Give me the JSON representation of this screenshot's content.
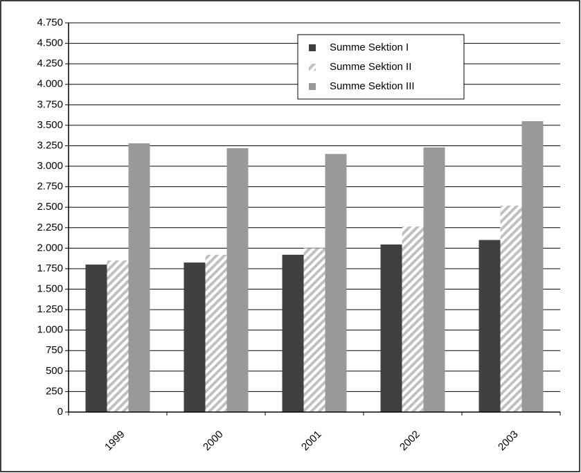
{
  "chart_data": {
    "type": "bar",
    "categories": [
      "1999",
      "2000",
      "2001",
      "2002",
      "2003"
    ],
    "series": [
      {
        "name": "Summe Sektion I",
        "color": "#404040",
        "values": [
          1800,
          1825,
          1920,
          2045,
          2100
        ]
      },
      {
        "name": "Summe Sektion II",
        "color": "#c0c0c0",
        "pattern": "hatch",
        "values": [
          1850,
          1920,
          2000,
          2265,
          2520
        ]
      },
      {
        "name": "Summe Sektion III",
        "color": "#999999",
        "values": [
          3280,
          3220,
          3150,
          3230,
          3550
        ]
      }
    ],
    "ylim": [
      0,
      4750
    ],
    "yticks": [
      0,
      250,
      500,
      750,
      {
        "value": 1000,
        "label": "1.000"
      },
      {
        "value": 1250,
        "label": "1.250"
      },
      {
        "value": 1500,
        "label": "1.500"
      },
      {
        "value": 1750,
        "label": "1.750"
      },
      {
        "value": 2000,
        "label": "2.000"
      },
      {
        "value": 2250,
        "label": "2.250"
      },
      {
        "value": 2500,
        "label": "2.500"
      },
      {
        "value": 2750,
        "label": "2.750"
      },
      {
        "value": 3000,
        "label": "3.000"
      },
      {
        "value": 3250,
        "label": "3.250"
      },
      {
        "value": 3500,
        "label": "3.500"
      },
      {
        "value": 3750,
        "label": "3.750"
      },
      {
        "value": 4000,
        "label": "4.000"
      },
      {
        "value": 4250,
        "label": "4.250"
      },
      {
        "value": 4500,
        "label": "4.500"
      },
      {
        "value": 4750,
        "label": "4.750"
      }
    ],
    "grid": true
  }
}
